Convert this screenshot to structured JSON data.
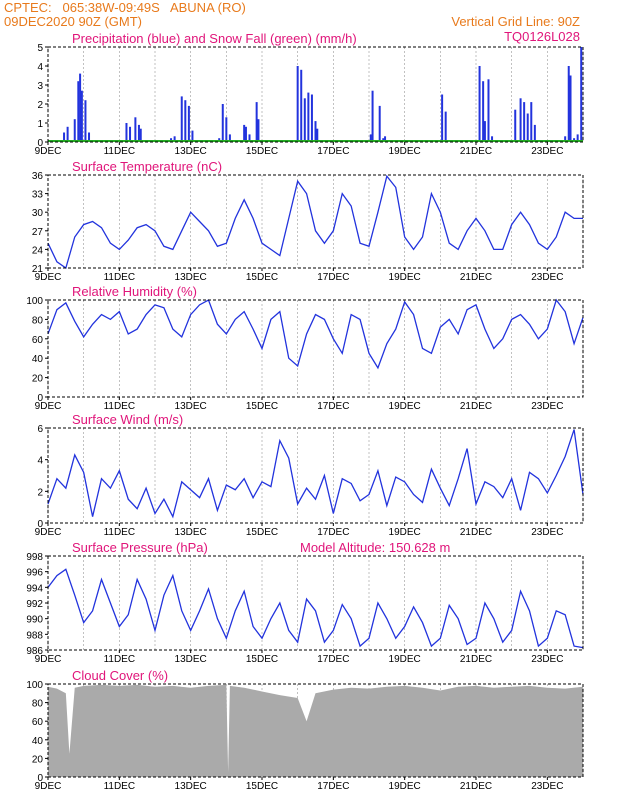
{
  "header": {
    "line1": "CPTEC:   065:38W-09:49S   ABUNA (RO)",
    "line2": "09DEC2020 90Z (GMT)",
    "grid_note": "Vertical Grid Line: 90Z",
    "code": "TQ0126L028"
  },
  "colors": {
    "line": "#2233dd",
    "snow": "#22aa22",
    "cloud": "#aaaaaa",
    "header": "#e87a1c",
    "title": "#e0157a"
  },
  "x_ticks": [
    "9DEC",
    "11DEC",
    "13DEC",
    "15DEC",
    "17DEC",
    "19DEC",
    "21DEC",
    "23DEC"
  ],
  "chart_data": [
    {
      "type": "bar",
      "title": "Precipitation (blue) and Snow Fall (green) (mm/h)",
      "ylim": [
        0,
        5
      ],
      "yticks": [
        "0",
        "1",
        "2",
        "3",
        "4",
        "5"
      ],
      "series": [
        {
          "name": "Precipitation",
          "x_days": [
            0.45,
            0.55,
            0.75,
            0.85,
            0.9,
            0.95,
            1.05,
            1.15,
            2.2,
            2.3,
            2.45,
            2.55,
            2.6,
            3.45,
            3.55,
            3.75,
            3.85,
            3.95,
            4.05,
            4.8,
            4.9,
            5.0,
            5.1,
            5.5,
            5.55,
            5.65,
            5.85,
            5.9,
            7.0,
            7.1,
            7.2,
            7.3,
            7.4,
            7.5,
            7.55,
            9.05,
            9.1,
            9.3,
            9.4,
            9.45,
            11.05,
            11.15,
            12.1,
            12.2,
            12.25,
            12.35,
            12.45,
            13.1,
            13.25,
            13.35,
            13.45,
            13.55,
            13.65,
            14.5,
            14.55,
            14.6,
            14.65,
            14.75,
            14.85,
            14.95
          ],
          "values": [
            0.5,
            0.8,
            1.2,
            3.2,
            3.6,
            2.7,
            2.2,
            0.5,
            1.0,
            0.8,
            1.3,
            0.9,
            0.7,
            0.2,
            0.3,
            2.4,
            2.2,
            1.9,
            0.6,
            0.2,
            2.0,
            1.3,
            0.4,
            0.9,
            0.8,
            0.4,
            2.1,
            1.2,
            4.0,
            3.8,
            2.3,
            2.6,
            2.5,
            1.1,
            0.7,
            0.4,
            2.7,
            1.9,
            0.2,
            0.3,
            2.5,
            1.6,
            4.0,
            3.2,
            1.1,
            3.3,
            0.3,
            1.7,
            2.3,
            2.1,
            1.5,
            2.1,
            0.9,
            0.3,
            0.1,
            4.0,
            3.5,
            0.2,
            0.4,
            5.0
          ]
        },
        {
          "name": "Snow Fall",
          "x_days": [
            0,
            15
          ],
          "values": [
            0,
            0
          ]
        }
      ]
    },
    {
      "type": "line",
      "title": "Surface Temperature (nC)",
      "ylim": [
        21,
        36
      ],
      "yticks": [
        "21",
        "24",
        "27",
        "30",
        "33",
        "36"
      ],
      "x_days": [
        0,
        0.25,
        0.5,
        0.75,
        1.0,
        1.25,
        1.5,
        1.75,
        2.0,
        2.25,
        2.5,
        2.75,
        3.0,
        3.25,
        3.5,
        3.75,
        4.0,
        4.25,
        4.5,
        4.75,
        5.0,
        5.25,
        5.5,
        5.75,
        6.0,
        6.25,
        6.5,
        6.75,
        7.0,
        7.25,
        7.5,
        7.75,
        8.0,
        8.25,
        8.5,
        8.75,
        9.0,
        9.25,
        9.5,
        9.75,
        10.0,
        10.25,
        10.5,
        10.75,
        11.0,
        11.25,
        11.5,
        11.75,
        12.0,
        12.25,
        12.5,
        12.75,
        13.0,
        13.25,
        13.5,
        13.75,
        14.0,
        14.25,
        14.5,
        14.75,
        15.0
      ],
      "values": [
        25,
        22,
        21,
        26,
        28,
        28.5,
        27.5,
        25,
        24,
        25.5,
        27.5,
        28,
        27,
        24.5,
        24,
        27,
        30,
        28.5,
        27,
        24.5,
        25,
        29,
        32,
        29,
        25,
        24,
        23,
        29,
        35,
        33,
        27,
        25,
        27,
        33,
        31,
        25,
        24.5,
        30,
        35.8,
        34,
        26,
        24,
        26,
        33,
        30,
        25,
        24,
        27,
        29,
        27,
        24,
        24,
        28,
        30,
        28,
        25,
        24,
        26,
        30,
        29,
        29
      ]
    },
    {
      "type": "line",
      "title": "Relative Humidity (%)",
      "ylim": [
        0,
        100
      ],
      "yticks": [
        "0",
        "20",
        "40",
        "60",
        "80",
        "100"
      ],
      "x_days": [
        0,
        0.25,
        0.5,
        0.75,
        1.0,
        1.25,
        1.5,
        1.75,
        2.0,
        2.25,
        2.5,
        2.75,
        3.0,
        3.25,
        3.5,
        3.75,
        4.0,
        4.25,
        4.5,
        4.75,
        5.0,
        5.25,
        5.5,
        5.75,
        6.0,
        6.25,
        6.5,
        6.75,
        7.0,
        7.25,
        7.5,
        7.75,
        8.0,
        8.25,
        8.5,
        8.75,
        9.0,
        9.25,
        9.5,
        9.75,
        10.0,
        10.25,
        10.5,
        10.75,
        11.0,
        11.25,
        11.5,
        11.75,
        12.0,
        12.25,
        12.5,
        12.75,
        13.0,
        13.25,
        13.5,
        13.75,
        14.0,
        14.25,
        14.5,
        14.75,
        15.0
      ],
      "values": [
        65,
        90,
        97,
        78,
        62,
        75,
        85,
        80,
        88,
        65,
        70,
        85,
        95,
        92,
        70,
        62,
        85,
        95,
        100,
        75,
        65,
        80,
        88,
        70,
        50,
        80,
        88,
        40,
        32,
        65,
        85,
        80,
        60,
        45,
        85,
        80,
        45,
        30,
        55,
        70,
        98,
        85,
        50,
        45,
        72,
        80,
        65,
        90,
        95,
        70,
        50,
        60,
        80,
        85,
        75,
        60,
        70,
        100,
        88,
        55,
        82
      ]
    },
    {
      "type": "line",
      "title": "Surface Wind (m/s)",
      "ylim": [
        0,
        6
      ],
      "yticks": [
        "0",
        "2",
        "4",
        "6"
      ],
      "x_days": [
        0,
        0.25,
        0.5,
        0.75,
        1.0,
        1.25,
        1.5,
        1.75,
        2.0,
        2.25,
        2.5,
        2.75,
        3.0,
        3.25,
        3.5,
        3.75,
        4.0,
        4.25,
        4.5,
        4.75,
        5.0,
        5.25,
        5.5,
        5.75,
        6.0,
        6.25,
        6.5,
        6.75,
        7.0,
        7.25,
        7.5,
        7.75,
        8.0,
        8.25,
        8.5,
        8.75,
        9.0,
        9.25,
        9.5,
        9.75,
        10.0,
        10.25,
        10.5,
        10.75,
        11.0,
        11.25,
        11.5,
        11.75,
        12.0,
        12.25,
        12.5,
        12.75,
        13.0,
        13.25,
        13.5,
        13.75,
        14.0,
        14.25,
        14.5,
        14.75,
        15.0
      ],
      "values": [
        1.2,
        2.8,
        2.2,
        4.3,
        3.2,
        0.4,
        2.8,
        2.2,
        3.3,
        1.5,
        0.9,
        2.2,
        0.6,
        1.5,
        0.4,
        2.6,
        2.1,
        1.6,
        2.8,
        0.8,
        2.4,
        2.1,
        2.8,
        1.6,
        2.6,
        2.3,
        5.2,
        4.1,
        1.2,
        2.2,
        1.5,
        3.0,
        0.6,
        2.8,
        2.5,
        1.4,
        1.8,
        3.3,
        1.1,
        2.9,
        2.6,
        1.8,
        1.3,
        3.4,
        2.2,
        1.1,
        2.8,
        4.7,
        1.2,
        2.6,
        2.3,
        1.6,
        2.8,
        0.8,
        3.2,
        2.8,
        1.9,
        3.0,
        4.2,
        5.9,
        1.8
      ]
    },
    {
      "type": "line",
      "title": "Surface Pressure (hPa)",
      "annotation": "Model Altitude: 150.628 m",
      "ylim": [
        986,
        998
      ],
      "yticks": [
        "986",
        "988",
        "990",
        "992",
        "994",
        "996",
        "998"
      ],
      "x_days": [
        0,
        0.25,
        0.5,
        0.75,
        1.0,
        1.25,
        1.5,
        1.75,
        2.0,
        2.25,
        2.5,
        2.75,
        3.0,
        3.25,
        3.5,
        3.75,
        4.0,
        4.25,
        4.5,
        4.75,
        5.0,
        5.25,
        5.5,
        5.75,
        6.0,
        6.25,
        6.5,
        6.75,
        7.0,
        7.25,
        7.5,
        7.75,
        8.0,
        8.25,
        8.5,
        8.75,
        9.0,
        9.25,
        9.5,
        9.75,
        10.0,
        10.25,
        10.5,
        10.75,
        11.0,
        11.25,
        11.5,
        11.75,
        12.0,
        12.25,
        12.5,
        12.75,
        13.0,
        13.25,
        13.5,
        13.75,
        14.0,
        14.25,
        14.5,
        14.75,
        15.0
      ],
      "values": [
        994,
        995.5,
        996.3,
        993,
        989.5,
        991,
        995,
        992,
        989,
        990.5,
        995,
        992.5,
        988.5,
        993,
        995.5,
        991,
        988.5,
        991,
        993.8,
        990,
        987.5,
        991,
        993.5,
        989,
        987.5,
        990,
        992,
        988.5,
        987,
        992.5,
        991,
        987,
        988.5,
        991.8,
        990,
        986.5,
        987.5,
        992,
        990,
        987.5,
        989,
        991.5,
        989.5,
        986.5,
        987.5,
        991.7,
        990,
        986.7,
        987.5,
        992,
        990,
        987,
        988.5,
        993.5,
        991,
        986.5,
        987.5,
        991,
        990.5,
        986.5,
        986.3
      ]
    },
    {
      "type": "area",
      "title": "Cloud Cover (%)",
      "ylim": [
        0,
        100
      ],
      "yticks": [
        "0",
        "20",
        "40",
        "60",
        "80",
        "100"
      ],
      "x_days": [
        0,
        0.25,
        0.5,
        0.6,
        0.75,
        1.0,
        1.5,
        2.0,
        2.5,
        3.0,
        3.5,
        4.0,
        4.5,
        5.0,
        5.05,
        5.1,
        5.5,
        6.0,
        6.5,
        7.0,
        7.25,
        7.5,
        8.0,
        8.5,
        9.0,
        9.5,
        10.0,
        10.5,
        11.0,
        11.5,
        12.0,
        12.5,
        13.0,
        13.5,
        14.0,
        14.5,
        15.0
      ],
      "values": [
        97,
        95,
        90,
        25,
        96,
        98,
        99,
        98,
        99,
        97,
        98,
        96,
        98,
        99,
        5,
        98,
        96,
        92,
        88,
        85,
        60,
        90,
        94,
        96,
        95,
        97,
        98,
        96,
        93,
        97,
        98,
        96,
        97,
        98,
        96,
        95,
        97
      ]
    }
  ]
}
